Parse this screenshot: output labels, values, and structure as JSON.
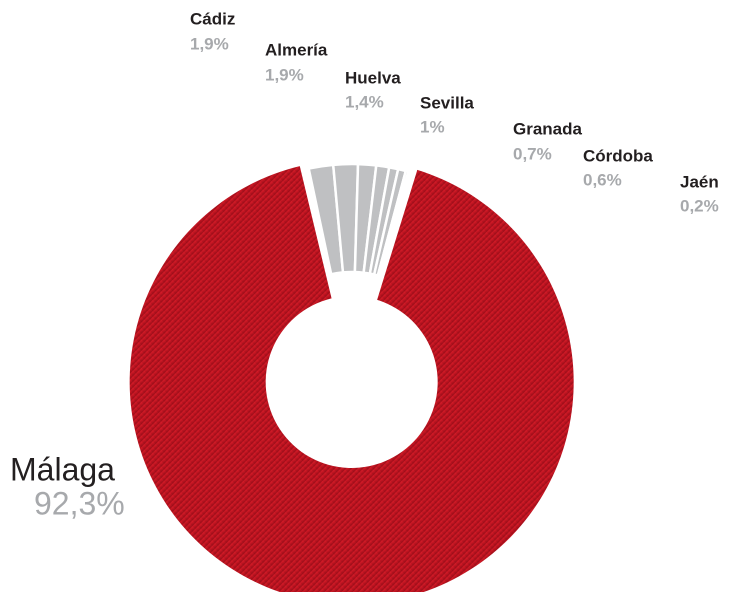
{
  "chart_data": {
    "type": "donut",
    "categories": [
      "Málaga",
      "Cádiz",
      "Almería",
      "Huelva",
      "Sevilla",
      "Granada",
      "Córdoba",
      "Jaén"
    ],
    "values": [
      92.3,
      1.9,
      1.9,
      1.4,
      1,
      0.7,
      0.6,
      0.2
    ],
    "value_labels": [
      "92,3%",
      "1,9%",
      "1,9%",
      "1,4%",
      "1%",
      "0,7%",
      "0,6%",
      "0,2%"
    ],
    "colors": [
      "#c8141f",
      "#bfc0c2",
      "#bfc0c2",
      "#bfc0c2",
      "#bfc0c2",
      "#bfc0c2",
      "#bfc0c2",
      "#bfc0c2"
    ]
  }
}
